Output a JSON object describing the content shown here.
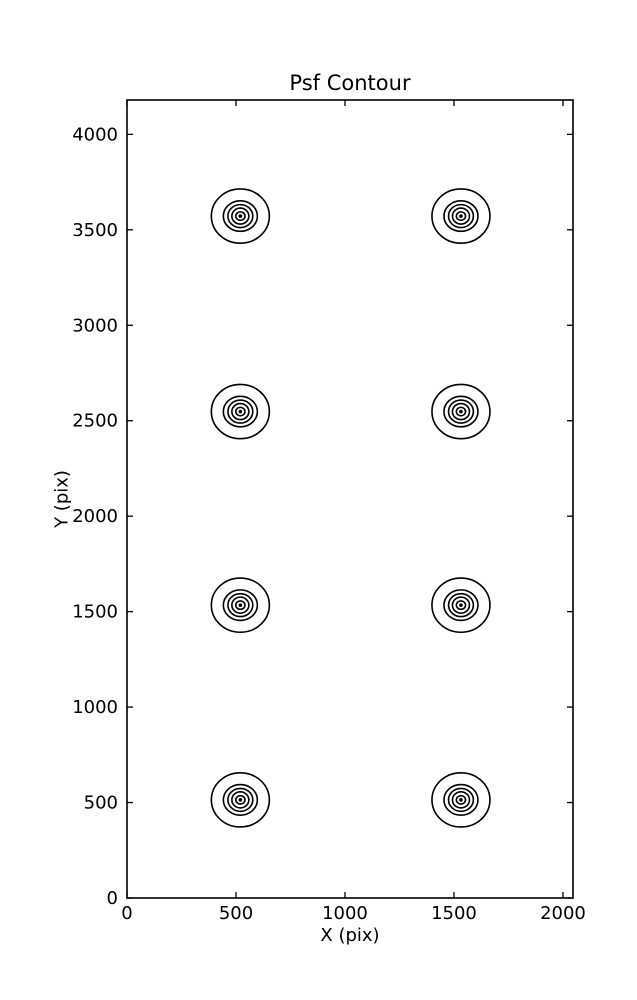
{
  "chart_data": {
    "type": "contour",
    "title": "Psf Contour",
    "xlabel": "X (pix)",
    "ylabel": "Y (pix)",
    "xlim": [
      0,
      2046
    ],
    "ylim": [
      0,
      4180
    ],
    "xticks": [
      0,
      500,
      1000,
      1500,
      2000
    ],
    "yticks": [
      0,
      500,
      1000,
      1500,
      2000,
      2500,
      3000,
      3500,
      4000
    ],
    "grid": false,
    "legend": "none",
    "line_color": "#000000",
    "background_color": "#ffffff",
    "psf_centers": [
      {
        "x": 520,
        "y": 3572
      },
      {
        "x": 1532,
        "y": 3572
      },
      {
        "x": 520,
        "y": 2548
      },
      {
        "x": 1532,
        "y": 2548
      },
      {
        "x": 520,
        "y": 1534
      },
      {
        "x": 1532,
        "y": 1534
      },
      {
        "x": 520,
        "y": 514
      },
      {
        "x": 1532,
        "y": 514
      }
    ],
    "contour_rings": [
      {
        "rx": 133,
        "ry": 142
      },
      {
        "rx": 78,
        "ry": 80
      },
      {
        "rx": 57,
        "ry": 60
      },
      {
        "rx": 39,
        "ry": 42
      },
      {
        "rx": 21,
        "ry": 22
      }
    ],
    "center_dot_radius": 8
  }
}
